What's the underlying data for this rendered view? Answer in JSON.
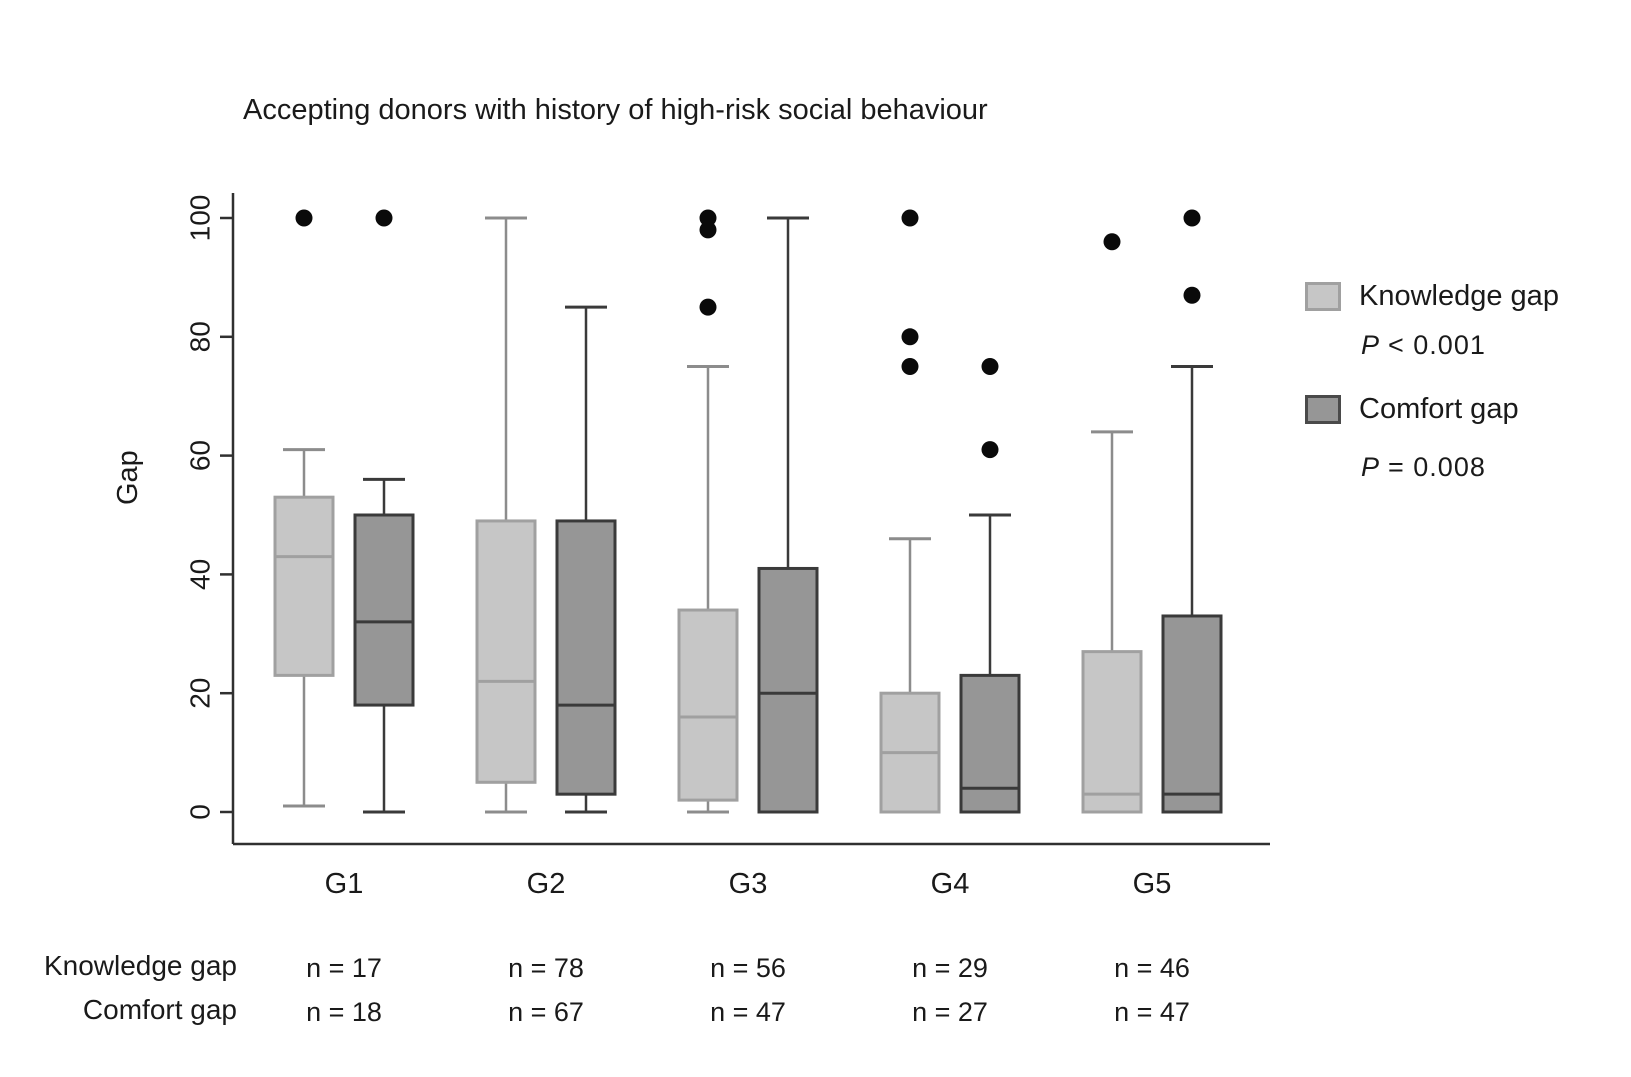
{
  "title": "Accepting donors with history of high-risk social behaviour",
  "y_axis": {
    "label": "Gap"
  },
  "chart_data": {
    "type": "boxplot",
    "title": "Accepting donors with history of high-risk social behaviour",
    "ylabel": "Gap",
    "ylim": [
      0,
      100
    ],
    "yticks": [
      0,
      20,
      40,
      60,
      80,
      100
    ],
    "categories": [
      "G1",
      "G2",
      "G3",
      "G4",
      "G5"
    ],
    "legend_position": "right",
    "grid": false,
    "series": [
      {
        "name": "Knowledge gap",
        "p_sym": "P",
        "p_rest": "<  0.001",
        "fill": "#c6c6c6",
        "border": "#a0a0a0",
        "whisker": "#8c8c8c",
        "n": [
          17,
          78,
          56,
          29,
          46
        ],
        "boxes": [
          {
            "low": 1,
            "q1": 23,
            "median": 43,
            "q3": 53,
            "high": 61,
            "outliers": [
              100
            ]
          },
          {
            "low": 0,
            "q1": 5,
            "median": 22,
            "q3": 49,
            "high": 100,
            "outliers": []
          },
          {
            "low": 0,
            "q1": 2,
            "median": 16,
            "q3": 34,
            "high": 75,
            "outliers": [
              85,
              98,
              100
            ]
          },
          {
            "low": 0,
            "q1": 0,
            "median": 10,
            "q3": 20,
            "high": 46,
            "outliers": [
              75,
              80,
              100
            ]
          },
          {
            "low": 0,
            "q1": 0,
            "median": 3,
            "q3": 27,
            "high": 64,
            "outliers": [
              96
            ]
          }
        ]
      },
      {
        "name": "Comfort gap",
        "p_sym": "P",
        "p_rest": "=  0.008",
        "fill": "#969696",
        "border": "#3a3a3a",
        "whisker": "#3a3a3a",
        "n": [
          18,
          67,
          47,
          27,
          47
        ],
        "boxes": [
          {
            "low": 0,
            "q1": 18,
            "median": 32,
            "q3": 50,
            "high": 56,
            "outliers": [
              100
            ]
          },
          {
            "low": 0,
            "q1": 3,
            "median": 18,
            "q3": 49,
            "high": 85,
            "outliers": []
          },
          {
            "low": 0,
            "q1": 0,
            "median": 20,
            "q3": 41,
            "high": 100,
            "outliers": []
          },
          {
            "low": 0,
            "q1": 0,
            "median": 4,
            "q3": 23,
            "high": 50,
            "outliers": [
              61,
              75
            ]
          },
          {
            "low": 0,
            "q1": 0,
            "median": 3,
            "q3": 33,
            "high": 75,
            "outliers": [
              87,
              100
            ]
          }
        ]
      }
    ]
  },
  "counts": {
    "prefix": "n = ",
    "rows": [
      {
        "label": "Knowledge gap"
      },
      {
        "label": "Comfort gap"
      }
    ]
  }
}
